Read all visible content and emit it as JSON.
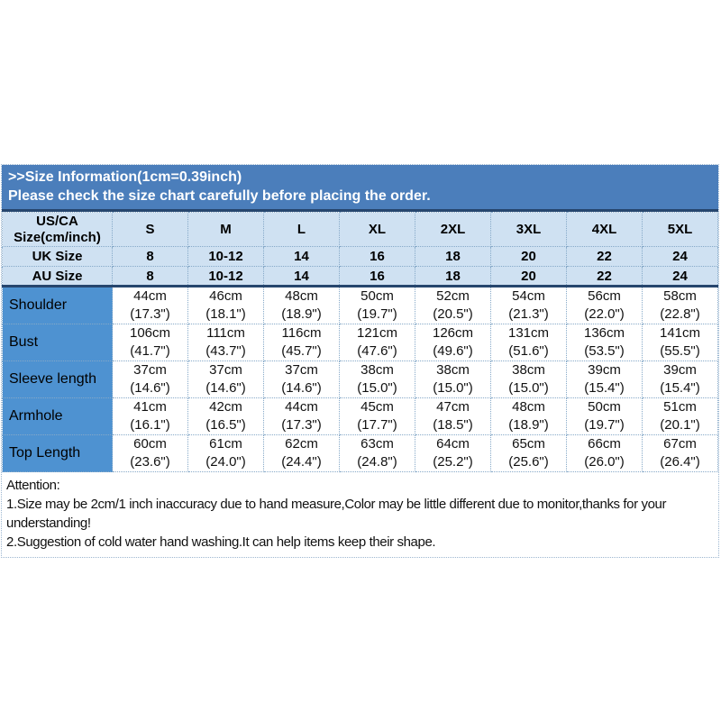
{
  "banner": {
    "line1": ">>Size Information(1cm=0.39inch)",
    "line2": "Please check the size chart carefully before placing the order."
  },
  "table": {
    "corner": {
      "line1": "US/CA",
      "line2": "Size(cm/inch)"
    },
    "sizes": [
      "S",
      "M",
      "L",
      "XL",
      "2XL",
      "3XL",
      "4XL",
      "5XL"
    ],
    "uk": {
      "label": "UK Size",
      "values": [
        "8",
        "10-12",
        "14",
        "16",
        "18",
        "20",
        "22",
        "24"
      ]
    },
    "au": {
      "label": "AU Size",
      "values": [
        "8",
        "10-12",
        "14",
        "16",
        "18",
        "20",
        "22",
        "24"
      ]
    },
    "rows": [
      {
        "label": "Shoulder",
        "cells": [
          {
            "cm": "44cm",
            "in": "(17.3\")"
          },
          {
            "cm": "46cm",
            "in": "(18.1\")"
          },
          {
            "cm": "48cm",
            "in": "(18.9\")"
          },
          {
            "cm": "50cm",
            "in": "(19.7\")"
          },
          {
            "cm": "52cm",
            "in": "(20.5\")"
          },
          {
            "cm": "54cm",
            "in": "(21.3\")"
          },
          {
            "cm": "56cm",
            "in": "(22.0\")"
          },
          {
            "cm": "58cm",
            "in": "(22.8\")"
          }
        ]
      },
      {
        "label": "Bust",
        "cells": [
          {
            "cm": "106cm",
            "in": "(41.7\")"
          },
          {
            "cm": "111cm",
            "in": "(43.7\")"
          },
          {
            "cm": "116cm",
            "in": "(45.7\")"
          },
          {
            "cm": "121cm",
            "in": "(47.6\")"
          },
          {
            "cm": "126cm",
            "in": "(49.6\")"
          },
          {
            "cm": "131cm",
            "in": "(51.6\")"
          },
          {
            "cm": "136cm",
            "in": "(53.5\")"
          },
          {
            "cm": "141cm",
            "in": "(55.5\")"
          }
        ]
      },
      {
        "label": "Sleeve length",
        "cells": [
          {
            "cm": "37cm",
            "in": "(14.6\")"
          },
          {
            "cm": "37cm",
            "in": "(14.6\")"
          },
          {
            "cm": "37cm",
            "in": "(14.6\")"
          },
          {
            "cm": "38cm",
            "in": "(15.0\")"
          },
          {
            "cm": "38cm",
            "in": "(15.0\")"
          },
          {
            "cm": "38cm",
            "in": "(15.0\")"
          },
          {
            "cm": "39cm",
            "in": "(15.4\")"
          },
          {
            "cm": "39cm",
            "in": "(15.4\")"
          }
        ]
      },
      {
        "label": "Armhole",
        "cells": [
          {
            "cm": "41cm",
            "in": "(16.1\")"
          },
          {
            "cm": "42cm",
            "in": "(16.5\")"
          },
          {
            "cm": "44cm",
            "in": "(17.3\")"
          },
          {
            "cm": "45cm",
            "in": "(17.7\")"
          },
          {
            "cm": "47cm",
            "in": "(18.5\")"
          },
          {
            "cm": "48cm",
            "in": "(18.9\")"
          },
          {
            "cm": "50cm",
            "in": "(19.7\")"
          },
          {
            "cm": "51cm",
            "in": "(20.1\")"
          }
        ]
      },
      {
        "label": "Top Length",
        "cells": [
          {
            "cm": "60cm",
            "in": "(23.6\")"
          },
          {
            "cm": "61cm",
            "in": "(24.0\")"
          },
          {
            "cm": "62cm",
            "in": "(24.4\")"
          },
          {
            "cm": "63cm",
            "in": "(24.8\")"
          },
          {
            "cm": "64cm",
            "in": "(25.2\")"
          },
          {
            "cm": "65cm",
            "in": "(25.6\")"
          },
          {
            "cm": "66cm",
            "in": "(26.0\")"
          },
          {
            "cm": "67cm",
            "in": "(26.4\")"
          }
        ]
      }
    ]
  },
  "attention": {
    "title": "Attention:",
    "lines": [
      "1.Size may be 2cm/1 inch inaccuracy due to hand measure,Color may be little different due to monitor,thanks for your",
      "understanding!",
      "2.Suggestion of cold water hand washing.It can help items keep their shape."
    ]
  },
  "colors": {
    "banner_blue": "#4b7ebb",
    "header_light_blue": "#cfe1f2",
    "row_label_blue": "#4e92d1",
    "dark_border_navy": "#26466e",
    "grid_dotted_blue": "#86a9c8"
  }
}
